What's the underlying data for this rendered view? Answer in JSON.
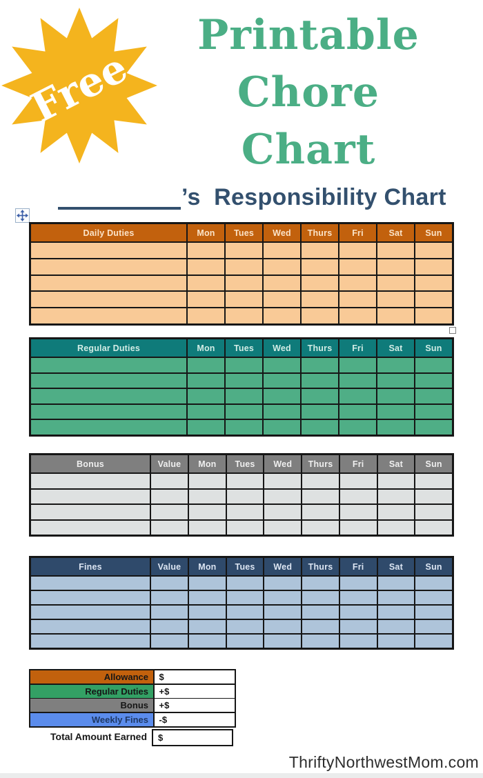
{
  "badge": {
    "label": "Free",
    "star_color": "#F4B41E",
    "text_color": "#FFFFFF"
  },
  "title": {
    "lines": [
      "Printable",
      "Chore",
      "Chart"
    ],
    "color": "#4BAE85"
  },
  "subtitle": {
    "suffix": "’s  Responsibility Chart",
    "color": "#33506E"
  },
  "tables": [
    {
      "label": "Daily Duties",
      "value_label": null,
      "days": [
        "Mon",
        "Tues",
        "Wed",
        "Thurs",
        "Fri",
        "Sat",
        "Sun"
      ],
      "rows": 5,
      "colors": {
        "header_bg": "#C2610D",
        "header_text": "#FBE3C8",
        "row_bg": "#F9CA97"
      }
    },
    {
      "label": "Regular Duties",
      "value_label": null,
      "days": [
        "Mon",
        "Tues",
        "Wed",
        "Thurs",
        "Fri",
        "Sat",
        "Sun"
      ],
      "rows": 5,
      "colors": {
        "header_bg": "#0F7B7A",
        "header_text": "#D2ECE5",
        "row_bg": "#4FAE86"
      }
    },
    {
      "label": "Bonus",
      "value_label": "Value",
      "days": [
        "Mon",
        "Tues",
        "Wed",
        "Thurs",
        "Fri",
        "Sat",
        "Sun"
      ],
      "rows": 4,
      "colors": {
        "header_bg": "#7F7F7F",
        "header_text": "#EFEFEF",
        "row_bg": "#DEE1E1"
      }
    },
    {
      "label": "Fines",
      "value_label": "Value",
      "days": [
        "Mon",
        "Tues",
        "Wed",
        "Thurs",
        "Fri",
        "Sat",
        "Sun"
      ],
      "rows": 5,
      "colors": {
        "header_bg": "#2F4A6B",
        "header_text": "#DCE5F2",
        "row_bg": "#AEC4DA"
      }
    }
  ],
  "summary": {
    "rows": [
      {
        "label": "Allowance",
        "value": "$",
        "bg": "#C2610D",
        "text_color": "#161616"
      },
      {
        "label": "Regular Duties",
        "value": "+$",
        "bg": "#33A064",
        "text_color": "#161616"
      },
      {
        "label": "Bonus",
        "value": "+$",
        "bg": "#7F7F7F",
        "text_color": "#161616"
      },
      {
        "label": "Weekly Fines",
        "value": "-$",
        "bg": "#5B8CEC",
        "text_color": "#1F3864"
      }
    ],
    "total": {
      "label": "Total Amount Earned",
      "value": "$"
    }
  },
  "footer": {
    "watermark": "ThriftyNorthwestMom.com"
  }
}
